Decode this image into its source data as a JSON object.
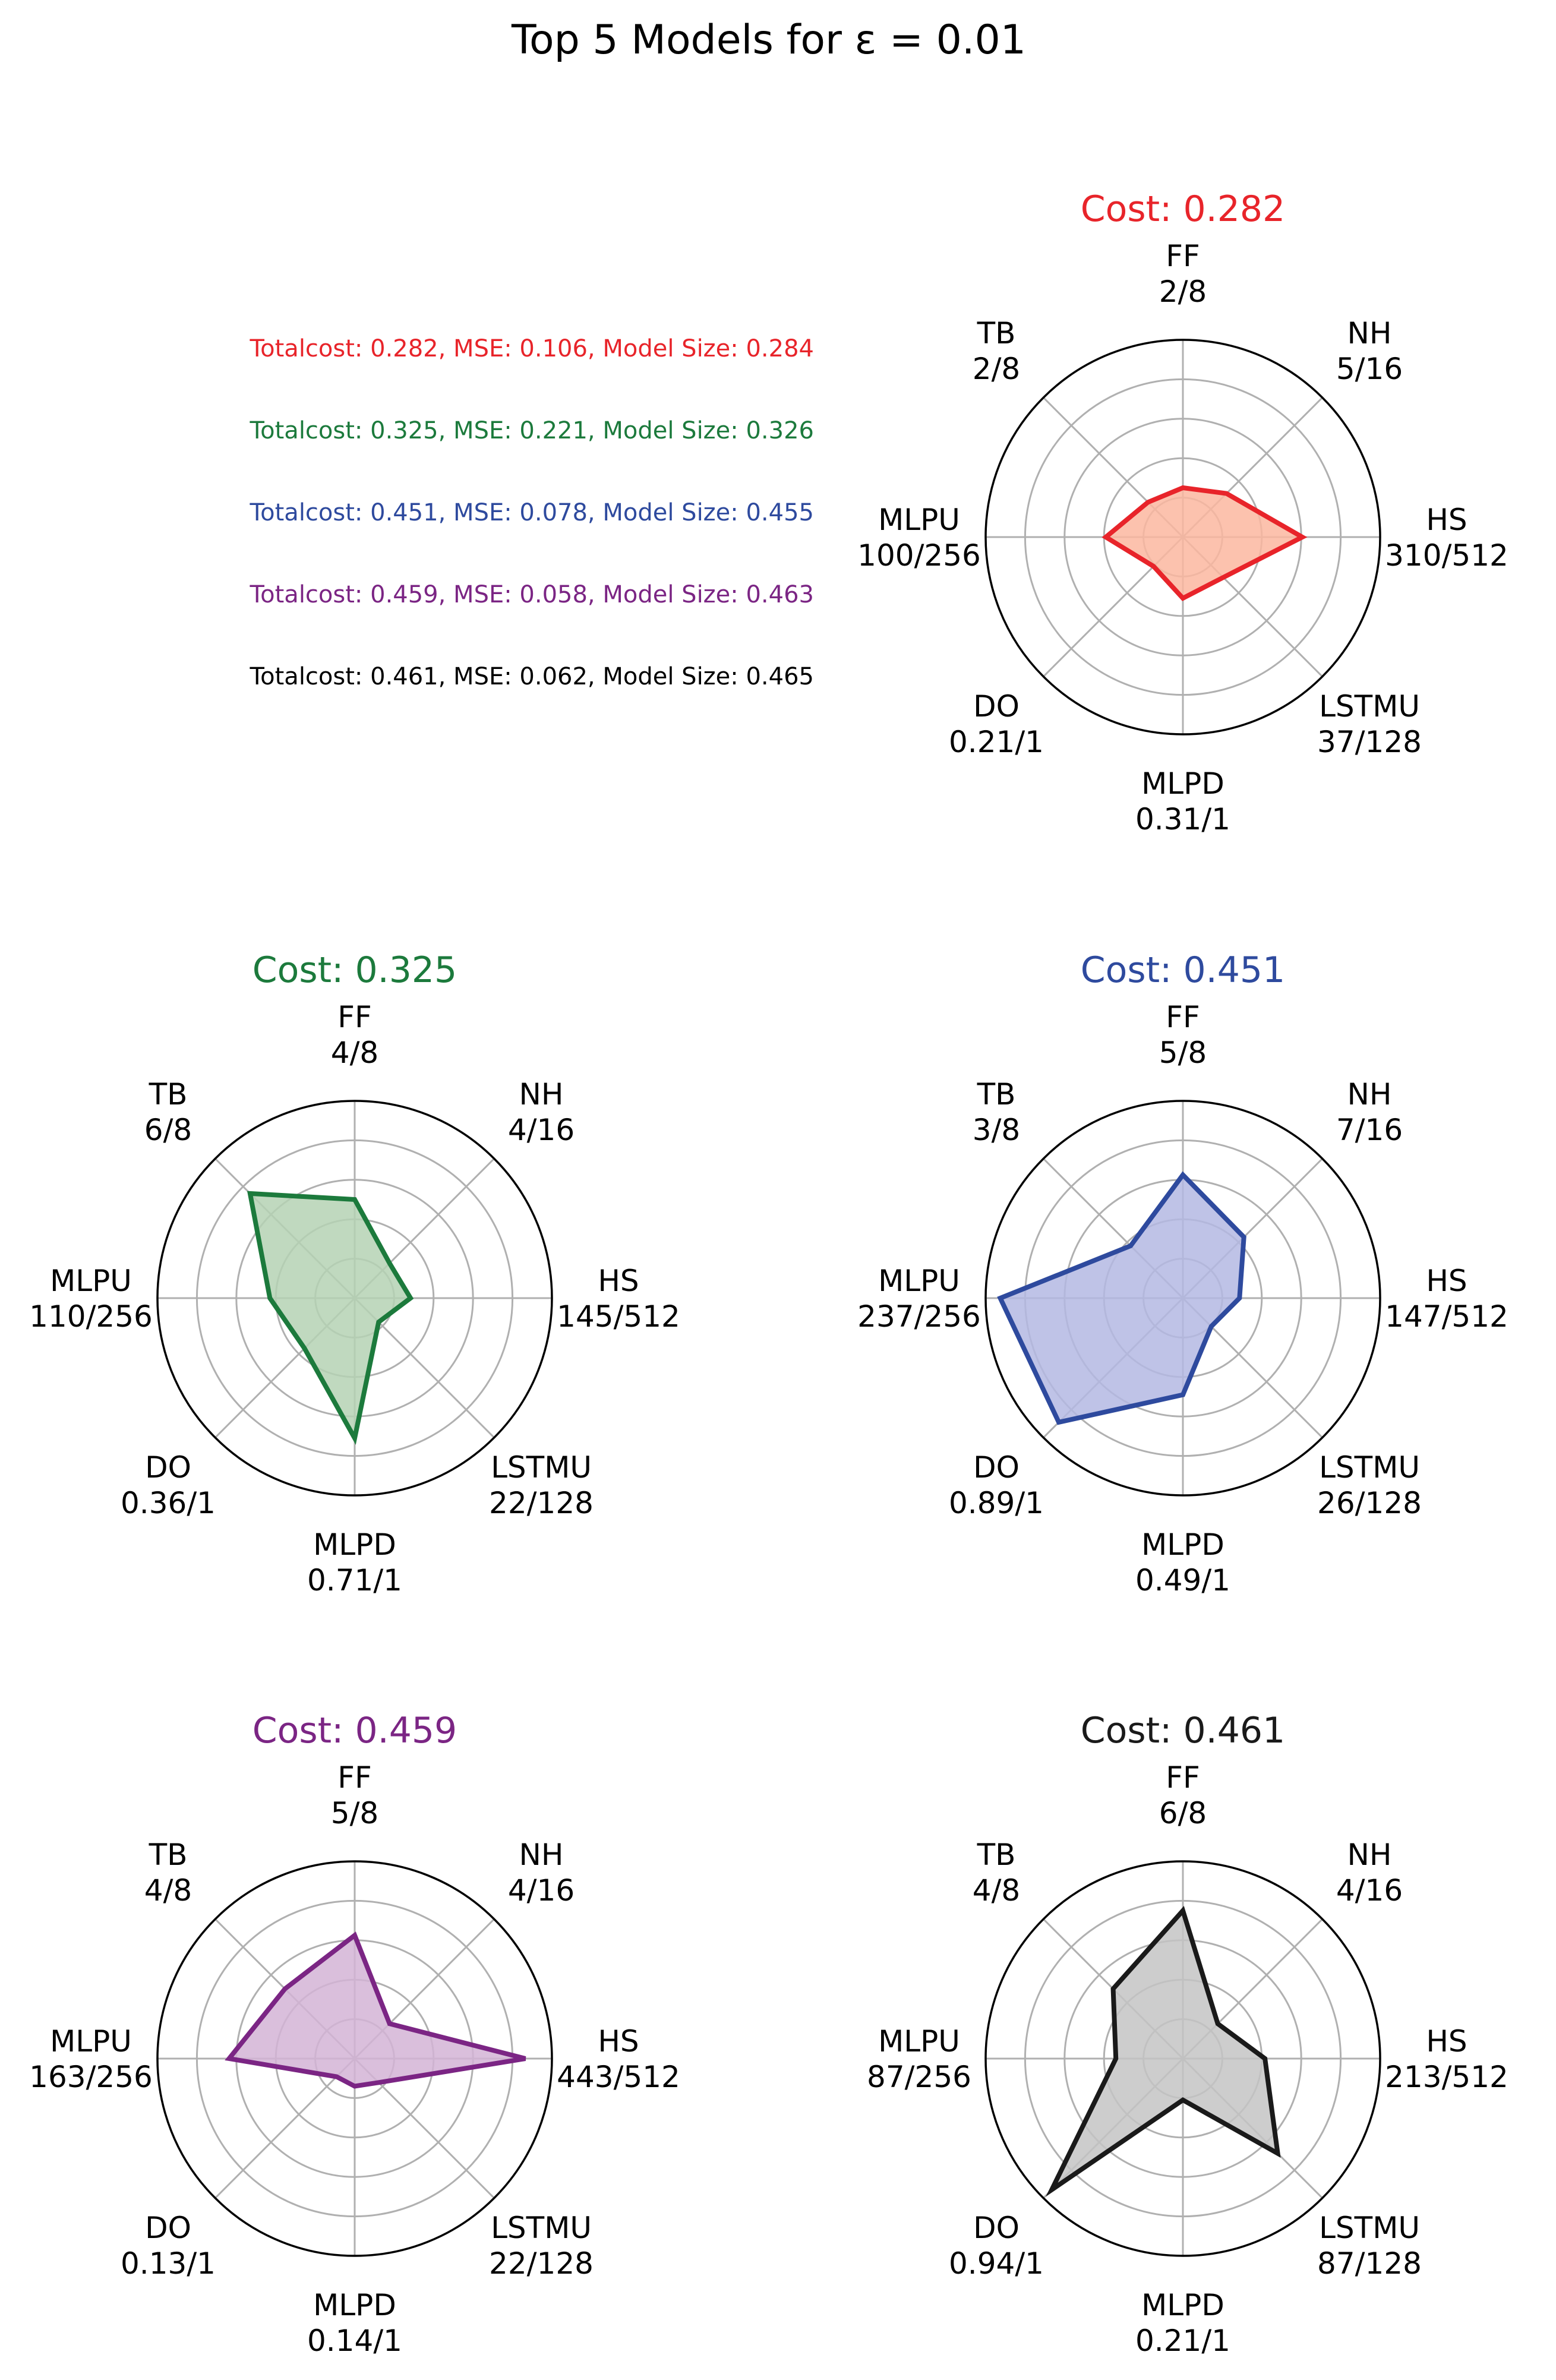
{
  "figure": {
    "title": "Top 5 Models for ε = 0.01"
  },
  "summary": [
    {
      "text": "Totalcost: 0.282, MSE: 0.106, Model Size: 0.284",
      "color": "#e8242a"
    },
    {
      "text": "Totalcost: 0.325, MSE: 0.221, Model Size: 0.326",
      "color": "#1c7a3c"
    },
    {
      "text": "Totalcost: 0.451, MSE: 0.078, Model Size: 0.455",
      "color": "#2e4a9e"
    },
    {
      "text": "Totalcost: 0.459, MSE: 0.058, Model Size: 0.463",
      "color": "#7b2584"
    },
    {
      "text": "Totalcost: 0.461, MSE: 0.062, Model Size: 0.465",
      "color": "#000000"
    }
  ],
  "chart_data": [
    {
      "type": "radar",
      "title": "Cost: 0.282",
      "line_color": "#e8242a",
      "fill_color": "#fbb7a0",
      "axes": [
        "FF",
        "NH",
        "HS",
        "LSTMU",
        "MLPD",
        "DO",
        "MLPU",
        "TB"
      ],
      "max": [
        8,
        16,
        512,
        128,
        1,
        1,
        256,
        8
      ],
      "values": [
        2,
        5,
        310,
        37,
        0.31,
        0.21,
        100,
        2
      ],
      "value_labels": [
        "2/8",
        "5/16",
        "310/512",
        "37/128",
        "0.31/1",
        "0.21/1",
        "100/256",
        "2/8"
      ]
    },
    {
      "type": "radar",
      "title": "Cost: 0.325",
      "line_color": "#1c7a3c",
      "fill_color": "#b5d2b4",
      "axes": [
        "FF",
        "NH",
        "HS",
        "LSTMU",
        "MLPD",
        "DO",
        "MLPU",
        "TB"
      ],
      "max": [
        8,
        16,
        512,
        128,
        1,
        1,
        256,
        8
      ],
      "values": [
        4,
        4,
        145,
        22,
        0.71,
        0.36,
        110,
        6
      ],
      "value_labels": [
        "4/8",
        "4/16",
        "145/512",
        "22/128",
        "0.71/1",
        "0.36/1",
        "110/256",
        "6/8"
      ]
    },
    {
      "type": "radar",
      "title": "Cost: 0.451",
      "line_color": "#2e4a9e",
      "fill_color": "#b4b9e3",
      "axes": [
        "FF",
        "NH",
        "HS",
        "LSTMU",
        "MLPD",
        "DO",
        "MLPU",
        "TB"
      ],
      "max": [
        8,
        16,
        512,
        128,
        1,
        1,
        256,
        8
      ],
      "values": [
        5,
        7,
        147,
        26,
        0.49,
        0.89,
        237,
        3
      ],
      "value_labels": [
        "5/8",
        "7/16",
        "147/512",
        "26/128",
        "0.49/1",
        "0.89/1",
        "237/256",
        "3/8"
      ]
    },
    {
      "type": "radar",
      "title": "Cost: 0.459",
      "line_color": "#7b2584",
      "fill_color": "#d4b4d6",
      "axes": [
        "FF",
        "NH",
        "HS",
        "LSTMU",
        "MLPD",
        "DO",
        "MLPU",
        "TB"
      ],
      "max": [
        8,
        16,
        512,
        128,
        1,
        1,
        256,
        8
      ],
      "values": [
        5,
        4,
        443,
        22,
        0.14,
        0.13,
        163,
        4
      ],
      "value_labels": [
        "5/8",
        "4/16",
        "443/512",
        "22/128",
        "0.14/1",
        "0.13/1",
        "163/256",
        "4/8"
      ]
    },
    {
      "type": "radar",
      "title": "Cost: 0.461",
      "line_color": "#1a1a1a",
      "fill_color": "#c4c4c4",
      "axes": [
        "FF",
        "NH",
        "HS",
        "LSTMU",
        "MLPD",
        "DO",
        "MLPU",
        "TB"
      ],
      "max": [
        8,
        16,
        512,
        128,
        1,
        1,
        256,
        8
      ],
      "values": [
        6,
        4,
        213,
        87,
        0.21,
        0.94,
        87,
        4
      ],
      "value_labels": [
        "6/8",
        "4/16",
        "213/512",
        "87/128",
        "0.21/1",
        "0.94/1",
        "87/256",
        "4/8"
      ]
    }
  ]
}
